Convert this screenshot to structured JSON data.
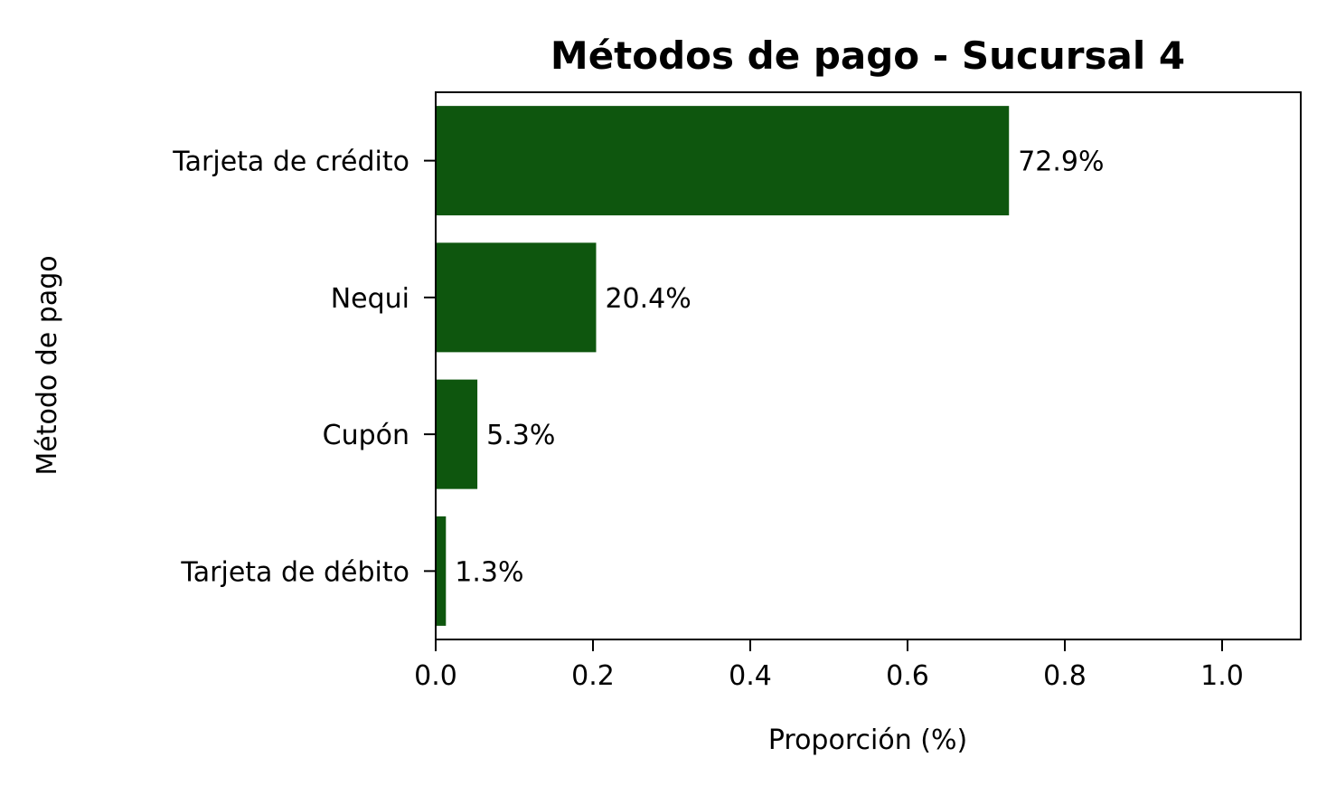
{
  "chart_data": {
    "type": "bar",
    "orientation": "horizontal",
    "title": "Métodos de pago - Sucursal 4",
    "xlabel": "Proporción (%)",
    "ylabel": "Método de pago",
    "categories": [
      "Tarjeta de crédito",
      "Nequi",
      "Cupón",
      "Tarjeta de débito"
    ],
    "values": [
      0.729,
      0.204,
      0.053,
      0.013
    ],
    "data_labels": [
      "72.9%",
      "20.4%",
      "5.3%",
      "1.3%"
    ],
    "xlim": [
      0,
      1.1
    ],
    "xticks": [
      0.0,
      0.2,
      0.4,
      0.6,
      0.8,
      1.0
    ],
    "xtick_labels": [
      "0.0",
      "0.2",
      "0.4",
      "0.6",
      "0.8",
      "1.0"
    ],
    "grid": false,
    "bar_color": "#0e560e"
  }
}
